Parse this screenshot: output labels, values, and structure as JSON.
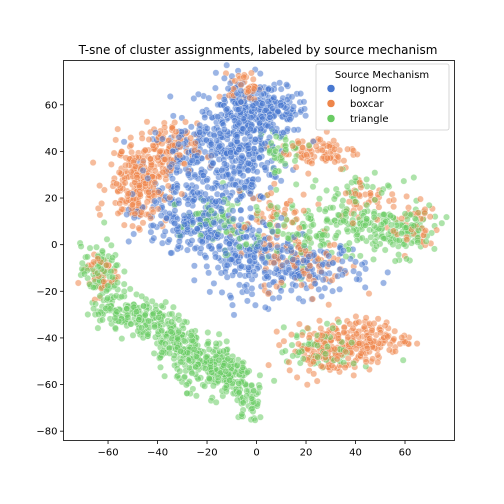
{
  "chart_data": {
    "type": "scatter",
    "title": "T-sne of cluster assignments, labeled by source mechanism",
    "xlabel": "",
    "ylabel": "",
    "xlim": [
      -78,
      80
    ],
    "ylim": [
      -84,
      79
    ],
    "xticks": [
      -60,
      -40,
      -20,
      0,
      20,
      40,
      60
    ],
    "yticks": [
      -80,
      -60,
      -40,
      -20,
      0,
      20,
      40,
      60
    ],
    "tick_labels": {
      "x": [
        "−60",
        "−40",
        "−20",
        "0",
        "20",
        "40",
        "60"
      ],
      "y": [
        "−80",
        "−60",
        "−40",
        "−20",
        "0",
        "20",
        "40",
        "60"
      ]
    },
    "grid": false,
    "legend": {
      "title": "Source Mechanism",
      "position": "top-right",
      "entries": [
        "lognorm",
        "boxcar",
        "triangle"
      ]
    },
    "series": [
      {
        "name": "lognorm",
        "color": "#4878d0",
        "regions": [
          {
            "cx": -7,
            "cy": 52,
            "sx": 8,
            "sy": 10,
            "n": 260
          },
          {
            "cx": 5,
            "cy": 57,
            "sx": 8,
            "sy": 5,
            "n": 160
          },
          {
            "cx": -25,
            "cy": 35,
            "sx": 10,
            "sy": 9,
            "n": 190
          },
          {
            "cx": -5,
            "cy": 33,
            "sx": 7,
            "sy": 9,
            "n": 130
          },
          {
            "cx": -30,
            "cy": 12,
            "sx": 10,
            "sy": 7,
            "n": 130
          },
          {
            "cx": -5,
            "cy": -5,
            "sx": 9,
            "sy": 8,
            "n": 160
          },
          {
            "cx": 20,
            "cy": -10,
            "sx": 12,
            "sy": 6,
            "n": 160
          },
          {
            "cx": -20,
            "cy": 5,
            "sx": 12,
            "sy": 6,
            "n": 90
          }
        ]
      },
      {
        "name": "boxcar",
        "color": "#ee854a",
        "regions": [
          {
            "cx": -48,
            "cy": 25,
            "sx": 6,
            "sy": 8,
            "n": 210
          },
          {
            "cx": -38,
            "cy": 40,
            "sx": 7,
            "sy": 6,
            "n": 130
          },
          {
            "cx": -5,
            "cy": 68,
            "sx": 3,
            "sy": 3,
            "n": 40
          },
          {
            "cx": 25,
            "cy": 40,
            "sx": 8,
            "sy": 4,
            "n": 80
          },
          {
            "cx": 20,
            "cy": -8,
            "sx": 9,
            "sy": 6,
            "n": 80
          },
          {
            "cx": 45,
            "cy": 20,
            "sx": 6,
            "sy": 5,
            "n": 40
          },
          {
            "cx": 30,
            "cy": -45,
            "sx": 9,
            "sy": 5,
            "n": 170
          },
          {
            "cx": 45,
            "cy": -40,
            "sx": 8,
            "sy": 4,
            "n": 110
          },
          {
            "cx": 5,
            "cy": 10,
            "sx": 8,
            "sy": 10,
            "n": 60
          },
          {
            "cx": -64,
            "cy": -12,
            "sx": 4,
            "sy": 5,
            "n": 40
          },
          {
            "cx": 64,
            "cy": 8,
            "sx": 5,
            "sy": 6,
            "n": 40
          }
        ]
      },
      {
        "name": "triangle",
        "color": "#6acc64",
        "regions": [
          {
            "cx": -63,
            "cy": -12,
            "sx": 4,
            "sy": 6,
            "n": 90
          },
          {
            "cx": -55,
            "cy": -28,
            "sx": 6,
            "sy": 4,
            "n": 100
          },
          {
            "cx": -42,
            "cy": -32,
            "sx": 5,
            "sy": 4,
            "n": 80
          },
          {
            "cx": -32,
            "cy": -42,
            "sx": 5,
            "sy": 5,
            "n": 120
          },
          {
            "cx": -20,
            "cy": -52,
            "sx": 6,
            "sy": 5,
            "n": 150
          },
          {
            "cx": -10,
            "cy": -58,
            "sx": 5,
            "sy": 5,
            "n": 110
          },
          {
            "cx": -3,
            "cy": -68,
            "sx": 3,
            "sy": 4,
            "n": 40
          },
          {
            "cx": 40,
            "cy": 12,
            "sx": 10,
            "sy": 8,
            "n": 150
          },
          {
            "cx": 58,
            "cy": 5,
            "sx": 8,
            "sy": 5,
            "n": 100
          },
          {
            "cx": 10,
            "cy": 40,
            "sx": 5,
            "sy": 5,
            "n": 40
          },
          {
            "cx": 25,
            "cy": -45,
            "sx": 8,
            "sy": 5,
            "n": 60
          },
          {
            "cx": 15,
            "cy": 5,
            "sx": 10,
            "sy": 8,
            "n": 80
          },
          {
            "cx": -15,
            "cy": 10,
            "sx": 8,
            "sy": 6,
            "n": 60
          }
        ]
      }
    ]
  }
}
